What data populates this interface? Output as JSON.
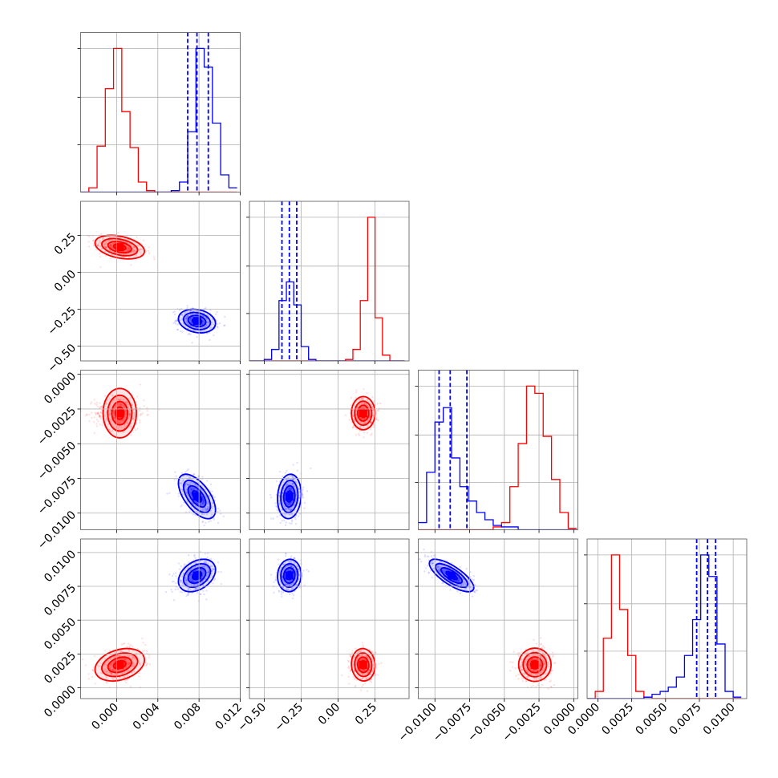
{
  "colors": {
    "series_a": "#ff0000",
    "series_b": "#0000ff",
    "grid": "#b0b0b0"
  },
  "chart_data": {
    "type": "corner",
    "title": "",
    "grid": true,
    "series": [
      {
        "color": "#ff0000",
        "means": [
          0.0003,
          0.17,
          -0.0028,
          0.0017
        ],
        "stds": [
          0.0012,
          0.04,
          0.0006,
          0.0006
        ]
      },
      {
        "color": "#0000ff",
        "means": [
          0.0078,
          -0.33,
          -0.0088,
          0.0083
        ],
        "stds": [
          0.0009,
          0.04,
          0.0008,
          0.0006
        ]
      }
    ],
    "quantile_lines": {
      "color": "#0000ff",
      "values": [
        [
          0.0069,
          0.0078,
          0.0089
        ],
        [
          -0.38,
          -0.33,
          -0.28
        ],
        [
          -0.0097,
          -0.0089,
          -0.0077
        ],
        [
          0.0073,
          0.0081,
          0.0087
        ]
      ]
    },
    "params": [
      {
        "range": [
          -0.0035,
          0.012
        ],
        "ticks": [
          0.0,
          0.004,
          0.008,
          0.012
        ],
        "tick_labels": [
          "0.000",
          "0.004",
          "0.008",
          "0.012"
        ]
      },
      {
        "range": [
          -0.6,
          0.48
        ],
        "ticks": [
          -0.5,
          -0.25,
          0.0,
          0.25
        ],
        "tick_labels": [
          "−0.50",
          "−0.25",
          "0.00",
          "0.25"
        ]
      },
      {
        "range": [
          -0.0112,
          0.0003
        ],
        "ticks": [
          -0.01,
          -0.0075,
          -0.005,
          -0.0025,
          0.0
        ],
        "tick_labels": [
          "−0.0100",
          "−0.0075",
          "−0.0050",
          "−0.0025",
          "0.0000"
        ]
      },
      {
        "range": [
          -0.0008,
          0.011
        ],
        "ticks": [
          0.0,
          0.0025,
          0.005,
          0.0075,
          0.01
        ],
        "tick_labels": [
          "0.0000",
          "0.0025",
          "0.0050",
          "0.0075",
          "0.0100"
        ]
      }
    ],
    "histograms": [
      {
        "edges": [
          -0.0035,
          -0.0027,
          -0.0019,
          -0.0011,
          -0.0003,
          0.0005,
          0.0013,
          0.0021,
          0.0029,
          0.0037,
          0.0045,
          0.0053,
          0.0061,
          0.0069,
          0.0077,
          0.0085,
          0.0093,
          0.0101,
          0.0109,
          0.0117
        ],
        "red": [
          0,
          0.03,
          0.32,
          0.72,
          1.0,
          0.56,
          0.31,
          0.07,
          0.01,
          0,
          0,
          0,
          0,
          0,
          0,
          0,
          0,
          0,
          0
        ],
        "blue": [
          0,
          0,
          0,
          0,
          0,
          0,
          0,
          0,
          0,
          0,
          0,
          0.01,
          0.07,
          0.42,
          1.0,
          0.87,
          0.48,
          0.12,
          0.03
        ]
      },
      {
        "edges": [
          -0.6,
          -0.55,
          -0.5,
          -0.45,
          -0.4,
          -0.35,
          -0.3,
          -0.25,
          -0.2,
          -0.15,
          -0.1,
          -0.05,
          0.0,
          0.05,
          0.1,
          0.15,
          0.2,
          0.25,
          0.3,
          0.35,
          0.4,
          0.45
        ],
        "red": [
          0,
          0,
          0,
          0,
          0,
          0,
          0,
          0,
          0,
          0,
          0,
          0,
          0,
          0.01,
          0.08,
          0.42,
          1.0,
          0.3,
          0.04,
          0,
          0
        ],
        "blue": [
          0,
          0,
          0.01,
          0.08,
          0.42,
          0.55,
          0.39,
          0.1,
          0.01,
          0,
          0,
          0,
          0,
          0,
          0,
          0,
          0,
          0,
          0,
          0,
          0
        ]
      },
      {
        "edges": [
          -0.0112,
          -0.0106,
          -0.01,
          -0.0094,
          -0.0088,
          -0.0082,
          -0.0076,
          -0.007,
          -0.0064,
          -0.0058,
          -0.0052,
          -0.0046,
          -0.004,
          -0.0034,
          -0.0028,
          -0.0022,
          -0.0016,
          -0.001,
          -0.0004,
          0.0002
        ],
        "red": [
          0,
          0,
          0,
          0,
          0,
          0,
          0,
          0,
          0,
          0.02,
          0.05,
          0.3,
          0.6,
          1.0,
          0.95,
          0.65,
          0.35,
          0.12,
          0.01
        ],
        "blue": [
          0.05,
          0.4,
          0.75,
          0.85,
          0.5,
          0.3,
          0.2,
          0.12,
          0.07,
          0.03,
          0.02,
          0.02,
          0,
          0,
          0,
          0,
          0,
          0,
          0
        ]
      },
      {
        "edges": [
          -0.0008,
          -0.0002,
          0.0004,
          0.001,
          0.0016,
          0.0022,
          0.0028,
          0.0034,
          0.004,
          0.0046,
          0.0052,
          0.0058,
          0.0064,
          0.007,
          0.0076,
          0.0082,
          0.0088,
          0.0094,
          0.01,
          0.0106
        ],
        "red": [
          0,
          0.05,
          0.42,
          1.0,
          0.62,
          0.3,
          0.05,
          0.01,
          0,
          0,
          0,
          0,
          0,
          0,
          0,
          0,
          0,
          0,
          0
        ],
        "blue": [
          0,
          0,
          0,
          0,
          0,
          0,
          0,
          0.01,
          0.03,
          0.05,
          0.08,
          0.15,
          0.3,
          0.55,
          1.0,
          0.85,
          0.38,
          0.05,
          0.01
        ]
      }
    ],
    "correlations": {
      "red": {
        "1_0": -0.35,
        "2_0": 0.0,
        "2_1": 0.0,
        "3_0": 0.3,
        "3_1": -0.05,
        "3_2": 0.0
      },
      "blue": {
        "1_0": -0.2,
        "2_0": -0.6,
        "2_1": 0.1,
        "3_0": 0.35,
        "3_1": 0.05,
        "3_2": -0.75
      }
    }
  }
}
